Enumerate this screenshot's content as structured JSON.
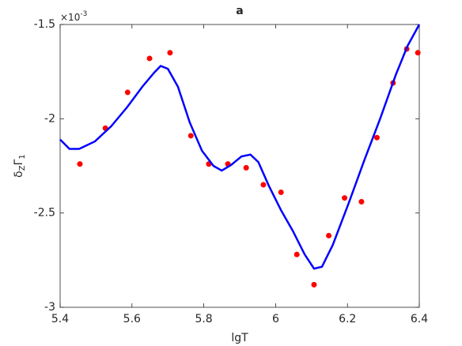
{
  "chart_data": {
    "type": "scatter",
    "title": "a",
    "xlabel": "lgT",
    "ylabel": [
      "δ",
      "Z",
      "Γ",
      "1"
    ],
    "y_exponent": {
      "base": "×10",
      "power": "-3"
    },
    "xlim": [
      5.4,
      6.4
    ],
    "xticks": [
      5.4,
      5.6,
      5.8,
      6,
      6.2,
      6.4
    ],
    "ylim": [
      -3,
      -1.5
    ],
    "yticks": [
      -3,
      -2.5,
      -2,
      -1.5
    ],
    "series": [
      {
        "style": "markers",
        "color": "#ff0000",
        "x": [
          5.455,
          5.526,
          5.588,
          5.649,
          5.706,
          5.764,
          5.814,
          5.867,
          5.918,
          5.966,
          6.015,
          6.059,
          6.107,
          6.148,
          6.192,
          6.239,
          6.282,
          6.327,
          6.365,
          6.396
        ],
        "values": [
          -2.24,
          -2.05,
          -1.86,
          -1.68,
          -1.65,
          -2.09,
          -2.24,
          -2.24,
          -2.26,
          -2.35,
          -2.39,
          -2.72,
          -2.88,
          -2.62,
          -2.42,
          -2.44,
          -2.1,
          -1.81,
          -1.63,
          -1.65
        ]
      },
      {
        "style": "line",
        "color": "#0000ff",
        "x": [
          5.4,
          5.426,
          5.453,
          5.497,
          5.542,
          5.586,
          5.629,
          5.662,
          5.68,
          5.7,
          5.728,
          5.761,
          5.795,
          5.827,
          5.85,
          5.876,
          5.905,
          5.93,
          5.952,
          5.981,
          6.015,
          6.048,
          6.081,
          6.107,
          6.129,
          6.159,
          6.203,
          6.247,
          6.291,
          6.335,
          6.367,
          6.4
        ],
        "values": [
          -2.11,
          -2.16,
          -2.16,
          -2.12,
          -2.04,
          -1.94,
          -1.83,
          -1.755,
          -1.72,
          -1.735,
          -1.83,
          -2.02,
          -2.17,
          -2.25,
          -2.275,
          -2.245,
          -2.2,
          -2.19,
          -2.23,
          -2.355,
          -2.485,
          -2.595,
          -2.72,
          -2.795,
          -2.785,
          -2.67,
          -2.45,
          -2.22,
          -2.0,
          -1.765,
          -1.615,
          -1.5
        ]
      }
    ]
  }
}
